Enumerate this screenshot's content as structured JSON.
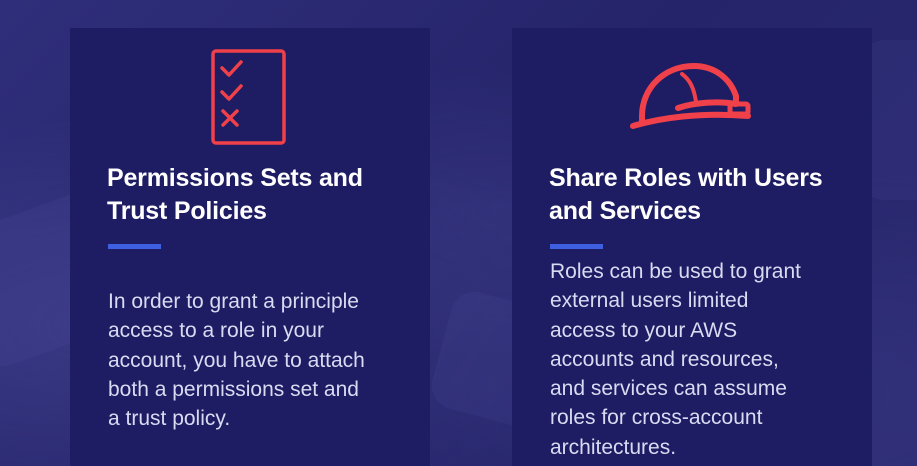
{
  "colors": {
    "background": "#2b2a73",
    "card": "#1e1c62",
    "icon": "#f0414a",
    "accent": "#3d5fe0",
    "title": "#ffffff",
    "body": "#d9dbf2"
  },
  "cards": [
    {
      "icon": "checklist-icon",
      "title_lines": [
        "Permissions Sets and",
        "Trust Policies"
      ],
      "body_lines": [
        "In order to grant a principle",
        "access to a role in your",
        "account, you have to attach",
        "both a permissions set and",
        "a trust policy."
      ]
    },
    {
      "icon": "hard-hat-icon",
      "title_lines": [
        "Share Roles with Users",
        "and Services"
      ],
      "body_lines": [
        "Roles can be used to grant",
        "external users limited",
        "access to your AWS",
        "accounts and resources,",
        "and services can assume",
        "roles for cross-account",
        "architectures."
      ]
    }
  ]
}
